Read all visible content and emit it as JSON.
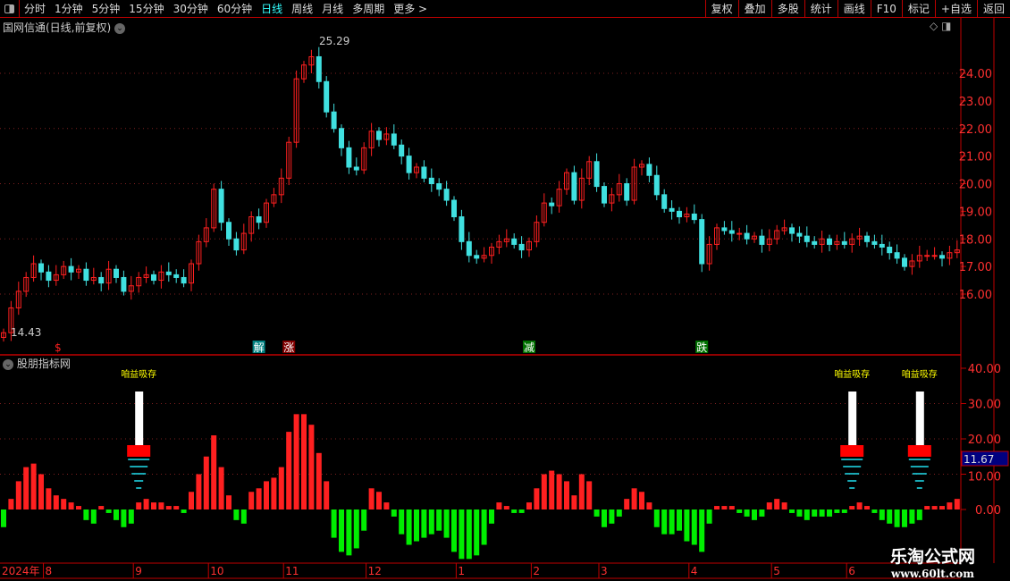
{
  "toolbar": {
    "periods": [
      "分时",
      "1分钟",
      "5分钟",
      "15分钟",
      "30分钟",
      "60分钟",
      "日线",
      "周线",
      "月线",
      "多周期",
      "更多 >"
    ],
    "active": "日线",
    "tools": [
      "复权",
      "叠加",
      "多股",
      "统计",
      "画线",
      "F10",
      "标记",
      "+自选",
      "返回"
    ]
  },
  "chart": {
    "title": "国网信通(日线,前复权)",
    "high_label": "25.29",
    "low_label": "14.43",
    "y_ticks": [
      "24.00",
      "23.00",
      "22.00",
      "21.00",
      "20.00",
      "19.00",
      "18.00",
      "17.00",
      "16.00"
    ],
    "markers": [
      {
        "text": "$",
        "index": 7,
        "bg": "",
        "color": "#ff2020"
      },
      {
        "text": "解",
        "index": 34,
        "bg": "#008080",
        "color": "#fff"
      },
      {
        "text": "涨",
        "index": 38,
        "bg": "#800000",
        "color": "#fff"
      },
      {
        "text": "减",
        "index": 70,
        "bg": "#007000",
        "color": "#fff"
      },
      {
        "text": "跌",
        "index": 93,
        "bg": "#007000",
        "color": "#fff"
      }
    ],
    "closes": [
      14.6,
      15.5,
      16.1,
      16.6,
      17.1,
      16.8,
      16.5,
      16.7,
      17.0,
      16.8,
      16.9,
      16.5,
      16.6,
      16.4,
      16.9,
      16.6,
      16.1,
      16.3,
      16.6,
      16.7,
      16.5,
      16.8,
      16.7,
      16.6,
      16.4,
      17.1,
      17.9,
      18.4,
      19.8,
      18.6,
      18.0,
      17.6,
      18.2,
      18.8,
      18.6,
      19.3,
      19.6,
      20.2,
      21.5,
      23.8,
      24.3,
      24.6,
      23.7,
      22.6,
      22.0,
      21.3,
      20.6,
      20.5,
      21.3,
      21.9,
      21.6,
      21.8,
      21.4,
      21.0,
      20.4,
      20.6,
      20.2,
      20.0,
      19.8,
      19.4,
      18.8,
      17.9,
      17.4,
      17.3,
      17.4,
      17.7,
      17.9,
      18.0,
      17.8,
      17.6,
      17.9,
      18.6,
      19.3,
      19.2,
      19.8,
      20.4,
      19.4,
      20.2,
      20.8,
      19.9,
      19.3,
      19.6,
      20.0,
      19.4,
      20.6,
      20.7,
      20.3,
      19.6,
      19.1,
      19.0,
      18.8,
      18.9,
      18.7,
      17.1,
      17.8,
      18.4,
      18.3,
      18.2,
      18.2,
      18.0,
      18.1,
      17.8,
      18.0,
      18.3,
      18.4,
      18.2,
      18.1,
      17.9,
      17.8,
      18.0,
      17.8,
      17.9,
      17.8,
      18.0,
      18.1,
      17.9,
      17.8,
      17.7,
      17.5,
      17.3,
      17.0,
      17.2,
      17.4,
      17.4,
      17.4,
      17.3,
      17.5,
      17.6
    ]
  },
  "indicator": {
    "title": "股朋指标网",
    "signal_label": "咱益吸存",
    "current_value": "11.67",
    "y_ticks": [
      "40.00",
      "30.00",
      "20.00",
      "10.00",
      "0.00"
    ],
    "values": [
      -5,
      3,
      8,
      12,
      13,
      10,
      6,
      4,
      3,
      2,
      1,
      -3,
      -4,
      1,
      -1,
      -3,
      -5,
      -4,
      2,
      3,
      2,
      2,
      1,
      1,
      -1,
      5,
      10,
      15,
      21,
      12,
      4,
      -3,
      -4,
      5,
      6,
      8,
      9,
      12,
      22,
      27,
      27,
      24,
      16,
      8,
      -8,
      -12,
      -13,
      -11,
      -6,
      6,
      5,
      2,
      -2,
      -7,
      -10,
      -9,
      -8,
      -7,
      -6,
      -8,
      -12,
      -14,
      -14,
      -13,
      -10,
      -4,
      2,
      1,
      -1,
      -1,
      2,
      6,
      10,
      11,
      10,
      8,
      4,
      10,
      8,
      -2,
      -5,
      -4,
      -2,
      3,
      6,
      5,
      2,
      -5,
      -7,
      -7,
      -6,
      -9,
      -10,
      -12,
      -4,
      1,
      1,
      1,
      -1,
      -2,
      -3,
      -2,
      2,
      3,
      2,
      -1,
      -2,
      -3,
      -2,
      -2,
      -2,
      -1,
      -1,
      1,
      2,
      1,
      -1,
      -3,
      -4,
      -5,
      -5,
      -4,
      -3,
      1,
      1,
      1,
      2,
      3
    ],
    "signals": [
      18,
      113,
      122
    ],
    "colors": {
      "up": "#ff2020",
      "down": "#00ee00",
      "signal": "#ffff00",
      "value_bg": "#000080"
    }
  },
  "timeline": {
    "labels": [
      {
        "t": "2024年",
        "i": 0
      },
      {
        "t": "8",
        "i": 5
      },
      {
        "t": "9",
        "i": 18
      },
      {
        "t": "10",
        "i": 28
      },
      {
        "t": "11",
        "i": 38
      },
      {
        "t": "12",
        "i": 49
      },
      {
        "t": "1",
        "i": 61
      },
      {
        "t": "2",
        "i": 71
      },
      {
        "t": "3",
        "i": 80
      },
      {
        "t": "4",
        "i": 92
      },
      {
        "t": "5",
        "i": 103
      },
      {
        "t": "6",
        "i": 113
      }
    ]
  },
  "watermark": {
    "name": "乐淘公式网",
    "url": "www.60lt.com"
  },
  "colors": {
    "up": "#ff2020",
    "down": "#40e0e0",
    "axis": "#c00000"
  }
}
